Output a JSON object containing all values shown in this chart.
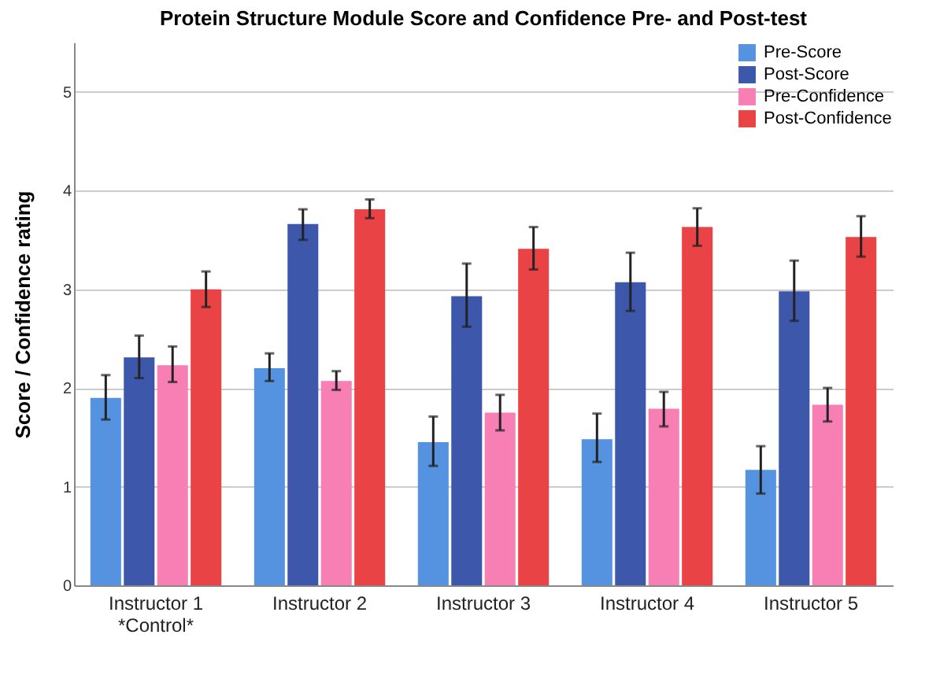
{
  "chart_data": {
    "type": "bar",
    "title": "Protein Structure Module Score and Confidence Pre- and Post-test",
    "ylabel": "Score / Confidence rating",
    "categories": [
      "Instructor 1\n*Control*",
      "Instructor 2",
      "Instructor 3",
      "Instructor 4",
      "Instructor 5"
    ],
    "series": [
      {
        "name": "Pre-Score",
        "color": "#5592e0",
        "values": [
          1.9,
          2.2,
          1.45,
          1.48,
          1.17
        ],
        "errors": [
          [
            1.68,
            2.13
          ],
          [
            2.07,
            2.35
          ],
          [
            1.21,
            1.71
          ],
          [
            1.25,
            1.74
          ],
          [
            0.93,
            1.41
          ]
        ]
      },
      {
        "name": "Post-Score",
        "color": "#3d58ab",
        "values": [
          2.31,
          3.66,
          2.93,
          3.07,
          2.98
        ],
        "errors": [
          [
            2.1,
            2.53
          ],
          [
            3.5,
            3.81
          ],
          [
            2.62,
            3.26
          ],
          [
            2.78,
            3.37
          ],
          [
            2.68,
            3.29
          ]
        ]
      },
      {
        "name": "Pre-Confidence",
        "color": "#f77fb4",
        "values": [
          2.23,
          2.07,
          1.75,
          1.79,
          1.83
        ],
        "errors": [
          [
            2.06,
            2.42
          ],
          [
            1.98,
            2.17
          ],
          [
            1.57,
            1.93
          ],
          [
            1.61,
            1.96
          ],
          [
            1.66,
            2.0
          ]
        ]
      },
      {
        "name": "Post-Confidence",
        "color": "#e94345",
        "values": [
          3.0,
          3.81,
          3.41,
          3.63,
          3.53
        ],
        "errors": [
          [
            2.82,
            3.18
          ],
          [
            3.72,
            3.91
          ],
          [
            3.2,
            3.63
          ],
          [
            3.44,
            3.82
          ],
          [
            3.33,
            3.74
          ]
        ]
      }
    ],
    "ylim": [
      0,
      5.5
    ],
    "yticks": [
      0,
      1,
      2,
      3,
      4,
      5
    ],
    "grid": "y",
    "legend": "top right"
  }
}
